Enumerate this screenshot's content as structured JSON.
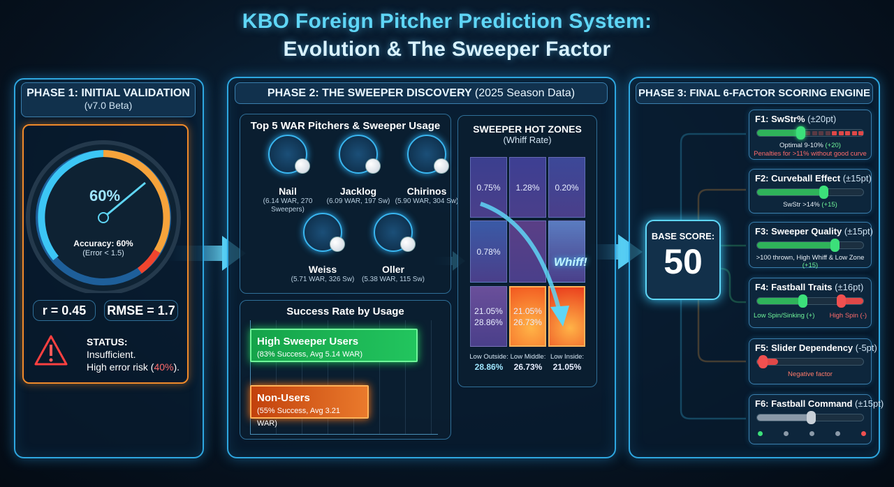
{
  "title": {
    "line1": "KBO Foreign Pitcher Prediction System:",
    "line2": "Evolution & The Sweeper Factor"
  },
  "phase1": {
    "title": "PHASE 1: INITIAL VALIDATION",
    "subtitle": "(v7.0 Beta)",
    "gauge_value": "60%",
    "gauge_fraction": 0.6,
    "accuracy": "Accuracy: 60%",
    "error": "(Error < 1.5)",
    "r": "r = 0.45",
    "rmse": "RMSE = 1.7",
    "status_label": "STATUS:",
    "status_line1": "Insufficient.",
    "status_line2_prefix": "High error risk (",
    "status_risk": "40%",
    "status_line2_suffix": ").",
    "icon": "warning-triangle-icon"
  },
  "phase2": {
    "title": "PHASE 2: THE SWEEPER DISCOVERY",
    "title_suffix": "(2025 Season Data)",
    "pitchers_title": "Top 5 WAR Pitchers & Sweeper Usage",
    "pitchers": [
      {
        "name": "Nail",
        "stat": "(6.14 WAR, 270 Sweepers)"
      },
      {
        "name": "Jacklog",
        "stat": "(6.09 WAR, 197 Sw)"
      },
      {
        "name": "Chirinos",
        "stat": "(5.90 WAR, 304 Sw)"
      },
      {
        "name": "Weiss",
        "stat": "(5.71 WAR, 326 Sw)"
      },
      {
        "name": "Oller",
        "stat": "(5.38 WAR, 115 Sw)"
      }
    ],
    "success_title": "Success Rate by Usage",
    "success_bars": [
      {
        "label": "High Sweeper Users",
        "detail": "(83% Success, Avg 5.14 WAR)",
        "success_pct": 83,
        "color": "#22c55e"
      },
      {
        "label": "Non-Users",
        "detail": "(55% Success, Avg 3.21 WAR)",
        "success_pct": 55,
        "color": "#f97316"
      }
    ],
    "zones_title": "SWEEPER HOT ZONES",
    "zones_subtitle": "(Whiff Rate)",
    "zones": [
      [
        "0.75%",
        "1.28%",
        "0.20%"
      ],
      [
        "0.78%",
        "",
        ""
      ],
      [
        "21.05%\n28.86%",
        "21.05%\n26.73%",
        ""
      ]
    ],
    "whiff_label": "Whiff!",
    "zone_labels": [
      {
        "label": "Low Outside:",
        "value": "28.86%"
      },
      {
        "label": "Low Middle:",
        "value": "26.73%"
      },
      {
        "label": "Low Inside:",
        "value": "21.05%"
      }
    ]
  },
  "phase3": {
    "title": "PHASE 3: FINAL 6-FACTOR SCORING ENGINE",
    "base_label": "BASE SCORE:",
    "base_value": "50",
    "factors": [
      {
        "name": "F1: SwStr%",
        "range": "(±20pt)",
        "note": "Optimal 9-10%",
        "note_bonus": "(+20)",
        "note2": "Penalties for >11% without good curve",
        "level": 0.4
      },
      {
        "name": "F2: Curveball Effect",
        "range": "(±15pt)",
        "note": "SwStr >14%",
        "note_bonus": "(+15)",
        "level": 0.62
      },
      {
        "name": "F3: Sweeper Quality",
        "range": "(±15pt)",
        "note": ">100 thrown, High Whiff & Low Zone",
        "note_bonus": "(+15)",
        "level": 0.72
      },
      {
        "name": "F4: Fastball Traits",
        "range": "(±16pt)",
        "note_left": "Low Spin/Sinking (+)",
        "note_right": "High Spin (-)",
        "level_green": 0.42,
        "level_red": 0.78
      },
      {
        "name": "F5: Slider Dependency",
        "range": "(-5pt)",
        "note": "Negative factor",
        "level": 0.05
      },
      {
        "name": "F6: Fastball Command",
        "range": "(±15pt)",
        "level": 0.5
      }
    ]
  }
}
